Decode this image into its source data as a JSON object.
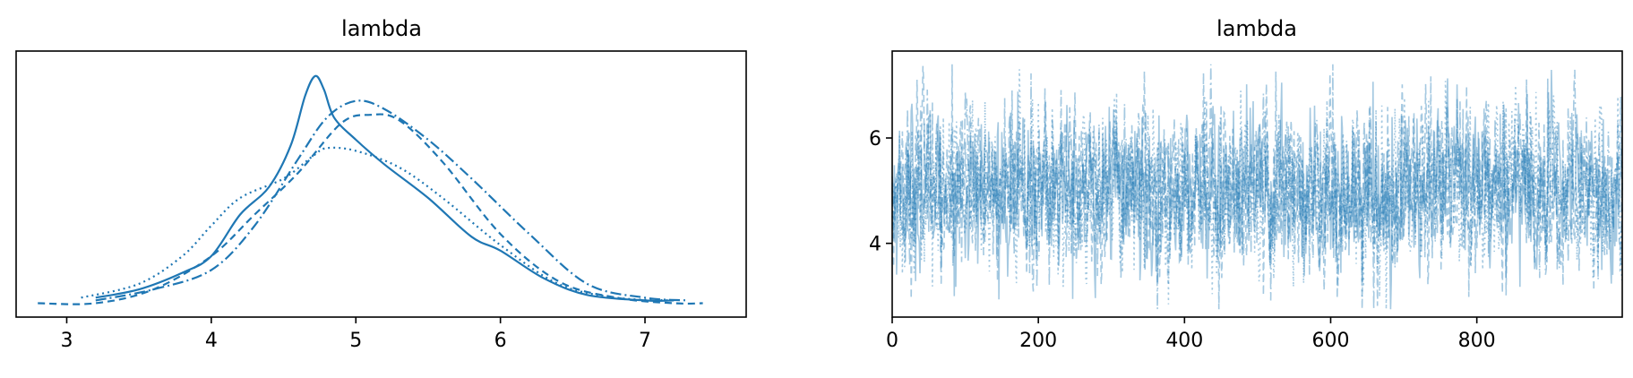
{
  "chart_data": [
    {
      "type": "line",
      "title": "lambda",
      "xlabel": "",
      "ylabel": "",
      "xlim": [
        2.65,
        7.7
      ],
      "ylim": [
        0,
        0.96
      ],
      "x_ticks": [
        3,
        4,
        5,
        6,
        7
      ],
      "x_tick_labels": [
        "3",
        "4",
        "5",
        "6",
        "7"
      ],
      "y_ticks_visible": false,
      "grid": false,
      "color": "#1f77b4",
      "series": [
        {
          "linestyle": "solid",
          "x": [
            3.2,
            3.5,
            3.8,
            4.0,
            4.2,
            4.4,
            4.55,
            4.65,
            4.72,
            4.78,
            4.85,
            5.0,
            5.2,
            5.5,
            5.8,
            6.0,
            6.3,
            6.6,
            7.0,
            7.2
          ],
          "y": [
            0.07,
            0.1,
            0.16,
            0.22,
            0.37,
            0.47,
            0.62,
            0.8,
            0.87,
            0.82,
            0.72,
            0.64,
            0.55,
            0.43,
            0.29,
            0.24,
            0.14,
            0.08,
            0.06,
            0.06
          ]
        },
        {
          "linestyle": "dotted",
          "x": [
            3.1,
            3.5,
            3.8,
            4.0,
            4.2,
            4.5,
            4.7,
            4.8,
            5.0,
            5.3,
            5.6,
            6.0,
            6.4,
            6.8,
            7.2
          ],
          "y": [
            0.07,
            0.12,
            0.22,
            0.33,
            0.43,
            0.5,
            0.58,
            0.61,
            0.6,
            0.54,
            0.43,
            0.26,
            0.12,
            0.07,
            0.06
          ]
        },
        {
          "linestyle": "dashed",
          "x": [
            2.8,
            3.2,
            3.6,
            4.0,
            4.3,
            4.6,
            4.9,
            5.1,
            5.3,
            5.6,
            6.0,
            6.4,
            6.8,
            7.2,
            7.4
          ],
          "y": [
            0.05,
            0.05,
            0.1,
            0.22,
            0.37,
            0.52,
            0.7,
            0.73,
            0.71,
            0.56,
            0.3,
            0.13,
            0.07,
            0.05,
            0.05
          ]
        },
        {
          "linestyle": "dashdot",
          "x": [
            3.2,
            3.6,
            4.0,
            4.3,
            4.6,
            4.8,
            5.0,
            5.2,
            5.5,
            5.8,
            6.2,
            6.6,
            7.0,
            7.3
          ],
          "y": [
            0.06,
            0.1,
            0.17,
            0.33,
            0.57,
            0.72,
            0.78,
            0.75,
            0.64,
            0.5,
            0.3,
            0.12,
            0.07,
            0.06
          ]
        }
      ]
    },
    {
      "type": "line",
      "title": "lambda",
      "xlabel": "",
      "ylabel": "",
      "xlim": [
        0,
        999
      ],
      "ylim": [
        2.6,
        7.65
      ],
      "x_ticks": [
        0,
        200,
        400,
        600,
        800
      ],
      "x_tick_labels": [
        "0",
        "200",
        "400",
        "600",
        "800"
      ],
      "y_ticks": [
        4,
        6
      ],
      "y_tick_labels": [
        "4",
        "6"
      ],
      "grid": false,
      "color": "#1f77b4",
      "series_alpha": 0.4,
      "series": [
        {
          "linestyle": "solid",
          "n_draws": 1000,
          "center": 5.0,
          "spread": 0.72
        },
        {
          "linestyle": "dotted",
          "n_draws": 1000,
          "center": 5.0,
          "spread": 0.72
        },
        {
          "linestyle": "dashed",
          "n_draws": 1000,
          "center": 5.0,
          "spread": 0.72
        },
        {
          "linestyle": "dashdot",
          "n_draws": 1000,
          "center": 5.0,
          "spread": 0.72
        }
      ]
    }
  ]
}
